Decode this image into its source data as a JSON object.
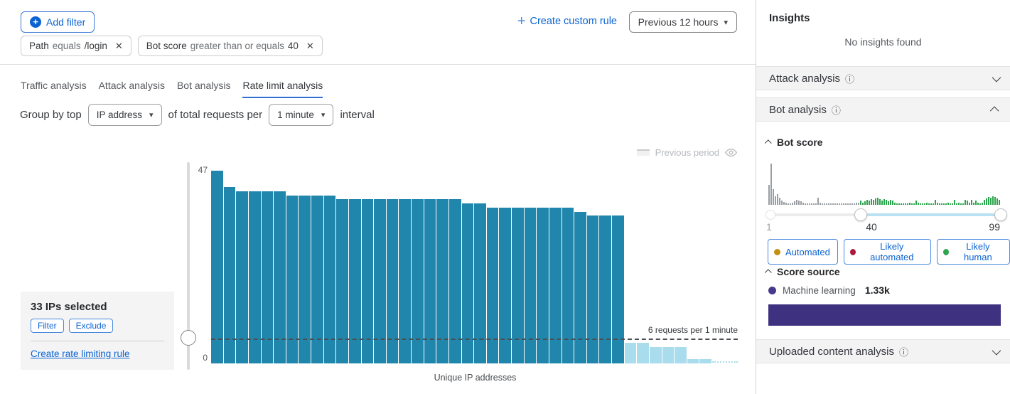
{
  "filter_bar": {
    "add_filter": "Add filter",
    "chip_path": {
      "field": "Path",
      "op": "equals",
      "value": "/login"
    },
    "chip_bot": {
      "field": "Bot score",
      "op": "greater than or equals",
      "value": "40"
    },
    "create_custom_rule": "Create custom rule",
    "time_range": "Previous 12 hours"
  },
  "tabs": [
    {
      "label": "Traffic analysis",
      "active": false
    },
    {
      "label": "Attack analysis",
      "active": false
    },
    {
      "label": "Bot analysis",
      "active": false
    },
    {
      "label": "Rate limit analysis",
      "active": true
    }
  ],
  "group_by": {
    "prefix": "Group by top",
    "field": "IP address",
    "middle": "of total requests per",
    "interval": "1 minute",
    "suffix": "interval"
  },
  "main_chart": {
    "legend_label": "Previous period",
    "selection": {
      "title": "33 IPs selected",
      "filter_btn": "Filter",
      "exclude_btn": "Exclude",
      "link": "Create rate limiting rule"
    }
  },
  "sidebar": {
    "title": "Insights",
    "empty": "No insights found",
    "sections": {
      "attack": "Attack analysis",
      "bot": "Bot analysis",
      "uploaded": "Uploaded content analysis"
    },
    "bot_score": {
      "title": "Bot score",
      "legend": [
        {
          "label": "Automated",
          "color": "#c29012"
        },
        {
          "label": "Likely automated",
          "color": "#a81b3d"
        },
        {
          "label": "Likely human",
          "color": "#2da44e"
        }
      ]
    },
    "score_source": {
      "title": "Score source",
      "source": "Machine learning",
      "count": "1.33k",
      "bar_color": "#3e3180"
    }
  },
  "chart_data": [
    {
      "type": "bar",
      "xlabel": "Unique IP addresses",
      "ylim": [
        0,
        47
      ],
      "y_ticks": [
        "47",
        "0"
      ],
      "threshold": {
        "value": 6,
        "label": "6 requests per 1 minute"
      },
      "series": [
        {
          "name": "Selected IPs",
          "color": "#2086ab",
          "values": [
            47,
            43,
            42,
            42,
            42,
            42,
            41,
            41,
            41,
            41,
            40,
            40,
            40,
            40,
            40,
            40,
            40,
            40,
            40,
            40,
            39,
            39,
            38,
            38,
            38,
            38,
            38,
            38,
            38,
            37,
            36,
            36,
            36
          ]
        },
        {
          "name": "IPs below threshold",
          "color": "#a9dcec",
          "values": [
            5,
            5,
            4,
            4,
            4,
            1,
            1
          ]
        }
      ],
      "legend": [
        {
          "label": "Previous period",
          "hidden": true
        }
      ]
    },
    {
      "type": "bar",
      "xlim": [
        1,
        99
      ],
      "x_ticks": [
        "1",
        "40",
        "99"
      ],
      "selected_range": [
        40,
        99
      ],
      "units": "relative-height",
      "series": [
        {
          "name": "scores-outside-selection",
          "color": "#9b9fa3",
          "values": [
            28,
            58,
            22,
            12,
            15,
            10,
            6,
            4,
            3,
            2,
            2,
            3,
            5,
            7,
            6,
            5,
            3,
            2,
            2,
            2,
            2,
            2,
            2,
            10,
            3,
            2,
            2,
            2,
            2,
            2,
            2,
            2,
            2,
            2,
            2,
            2,
            2,
            2,
            2,
            2,
            2,
            3,
            3
          ]
        },
        {
          "name": "scores-in-selection",
          "color": "#2da44e",
          "values": [
            6,
            3,
            5,
            7,
            6,
            8,
            7,
            9,
            10,
            8,
            6,
            8,
            7,
            5,
            7,
            6,
            3,
            2,
            2,
            2,
            2,
            2,
            2,
            3,
            2,
            2,
            6,
            3,
            2,
            2,
            2,
            3,
            2,
            2,
            2,
            7,
            3,
            2,
            2,
            2,
            2,
            3,
            2,
            2,
            7,
            2,
            3,
            2,
            2,
            7,
            6,
            3,
            7,
            3,
            6,
            3,
            2,
            3,
            7,
            9,
            11,
            10,
            12,
            11,
            9,
            7
          ]
        }
      ]
    }
  ]
}
